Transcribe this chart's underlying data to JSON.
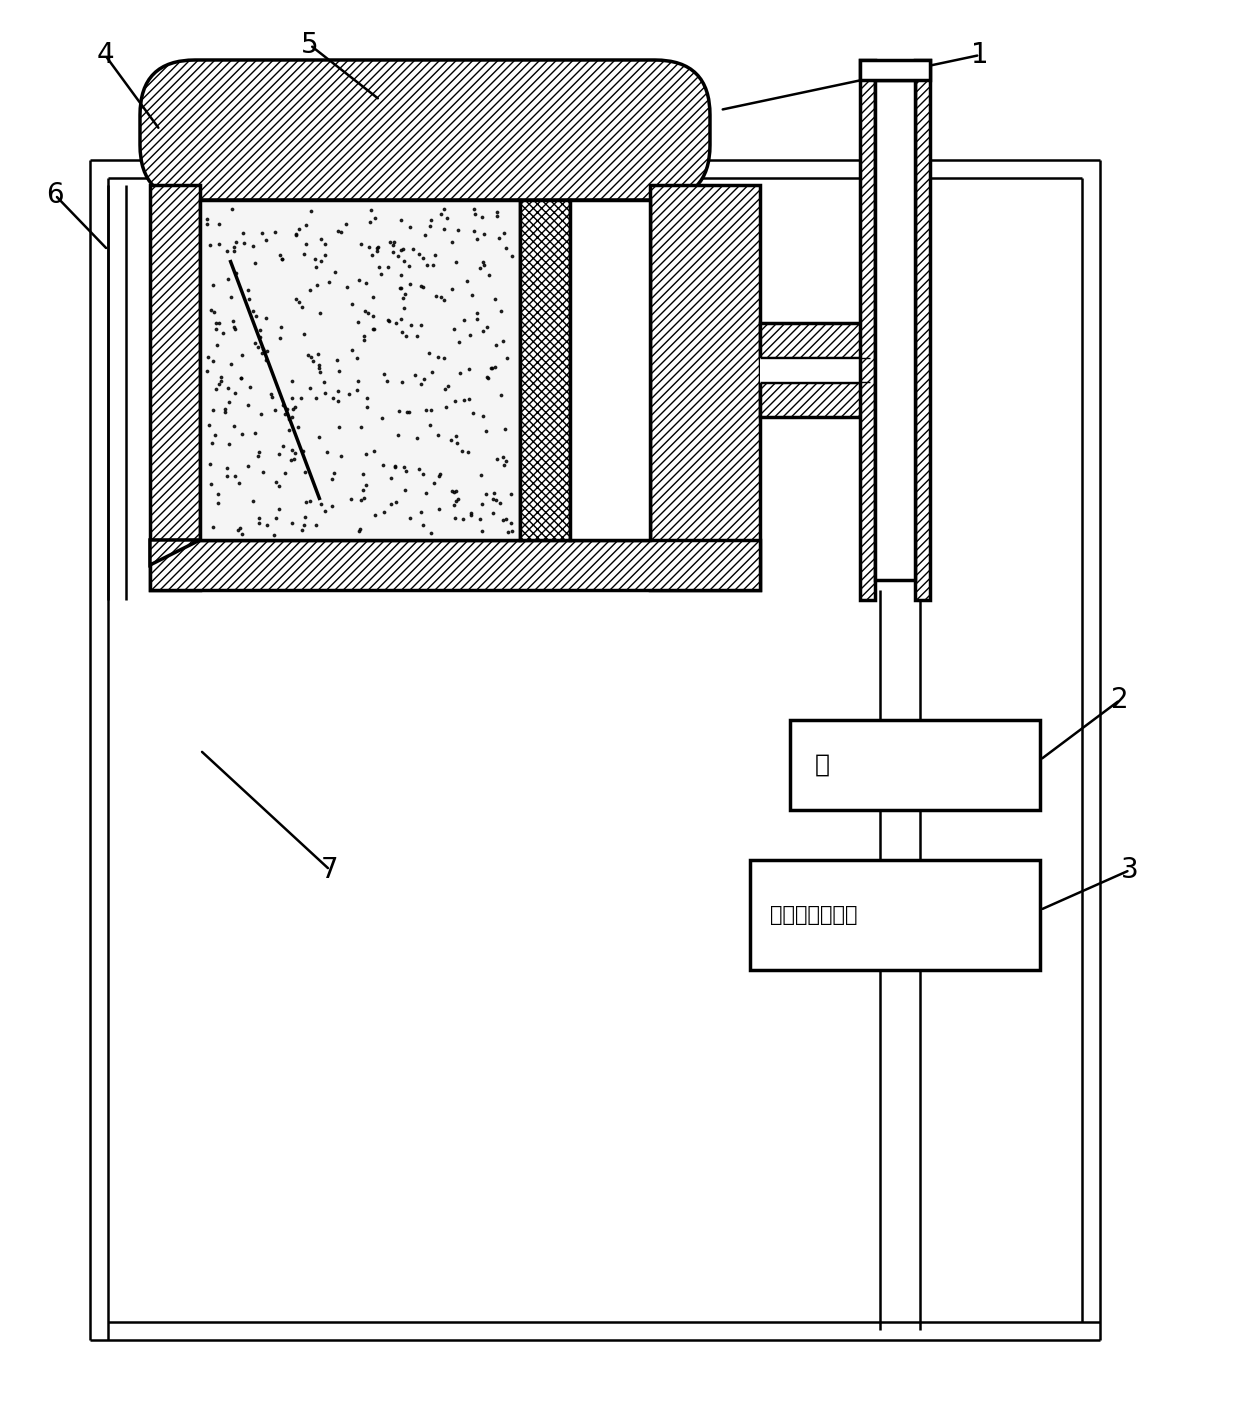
{
  "bg_color": "#ffffff",
  "line_color": "#000000",
  "pump_text": "泵",
  "radon_text": "静电收集测氡仪",
  "font_size_label": 20,
  "font_size_box_pump": 18,
  "font_size_box_radon": 15,
  "lw_main": 2.5,
  "lw_thin": 1.8
}
